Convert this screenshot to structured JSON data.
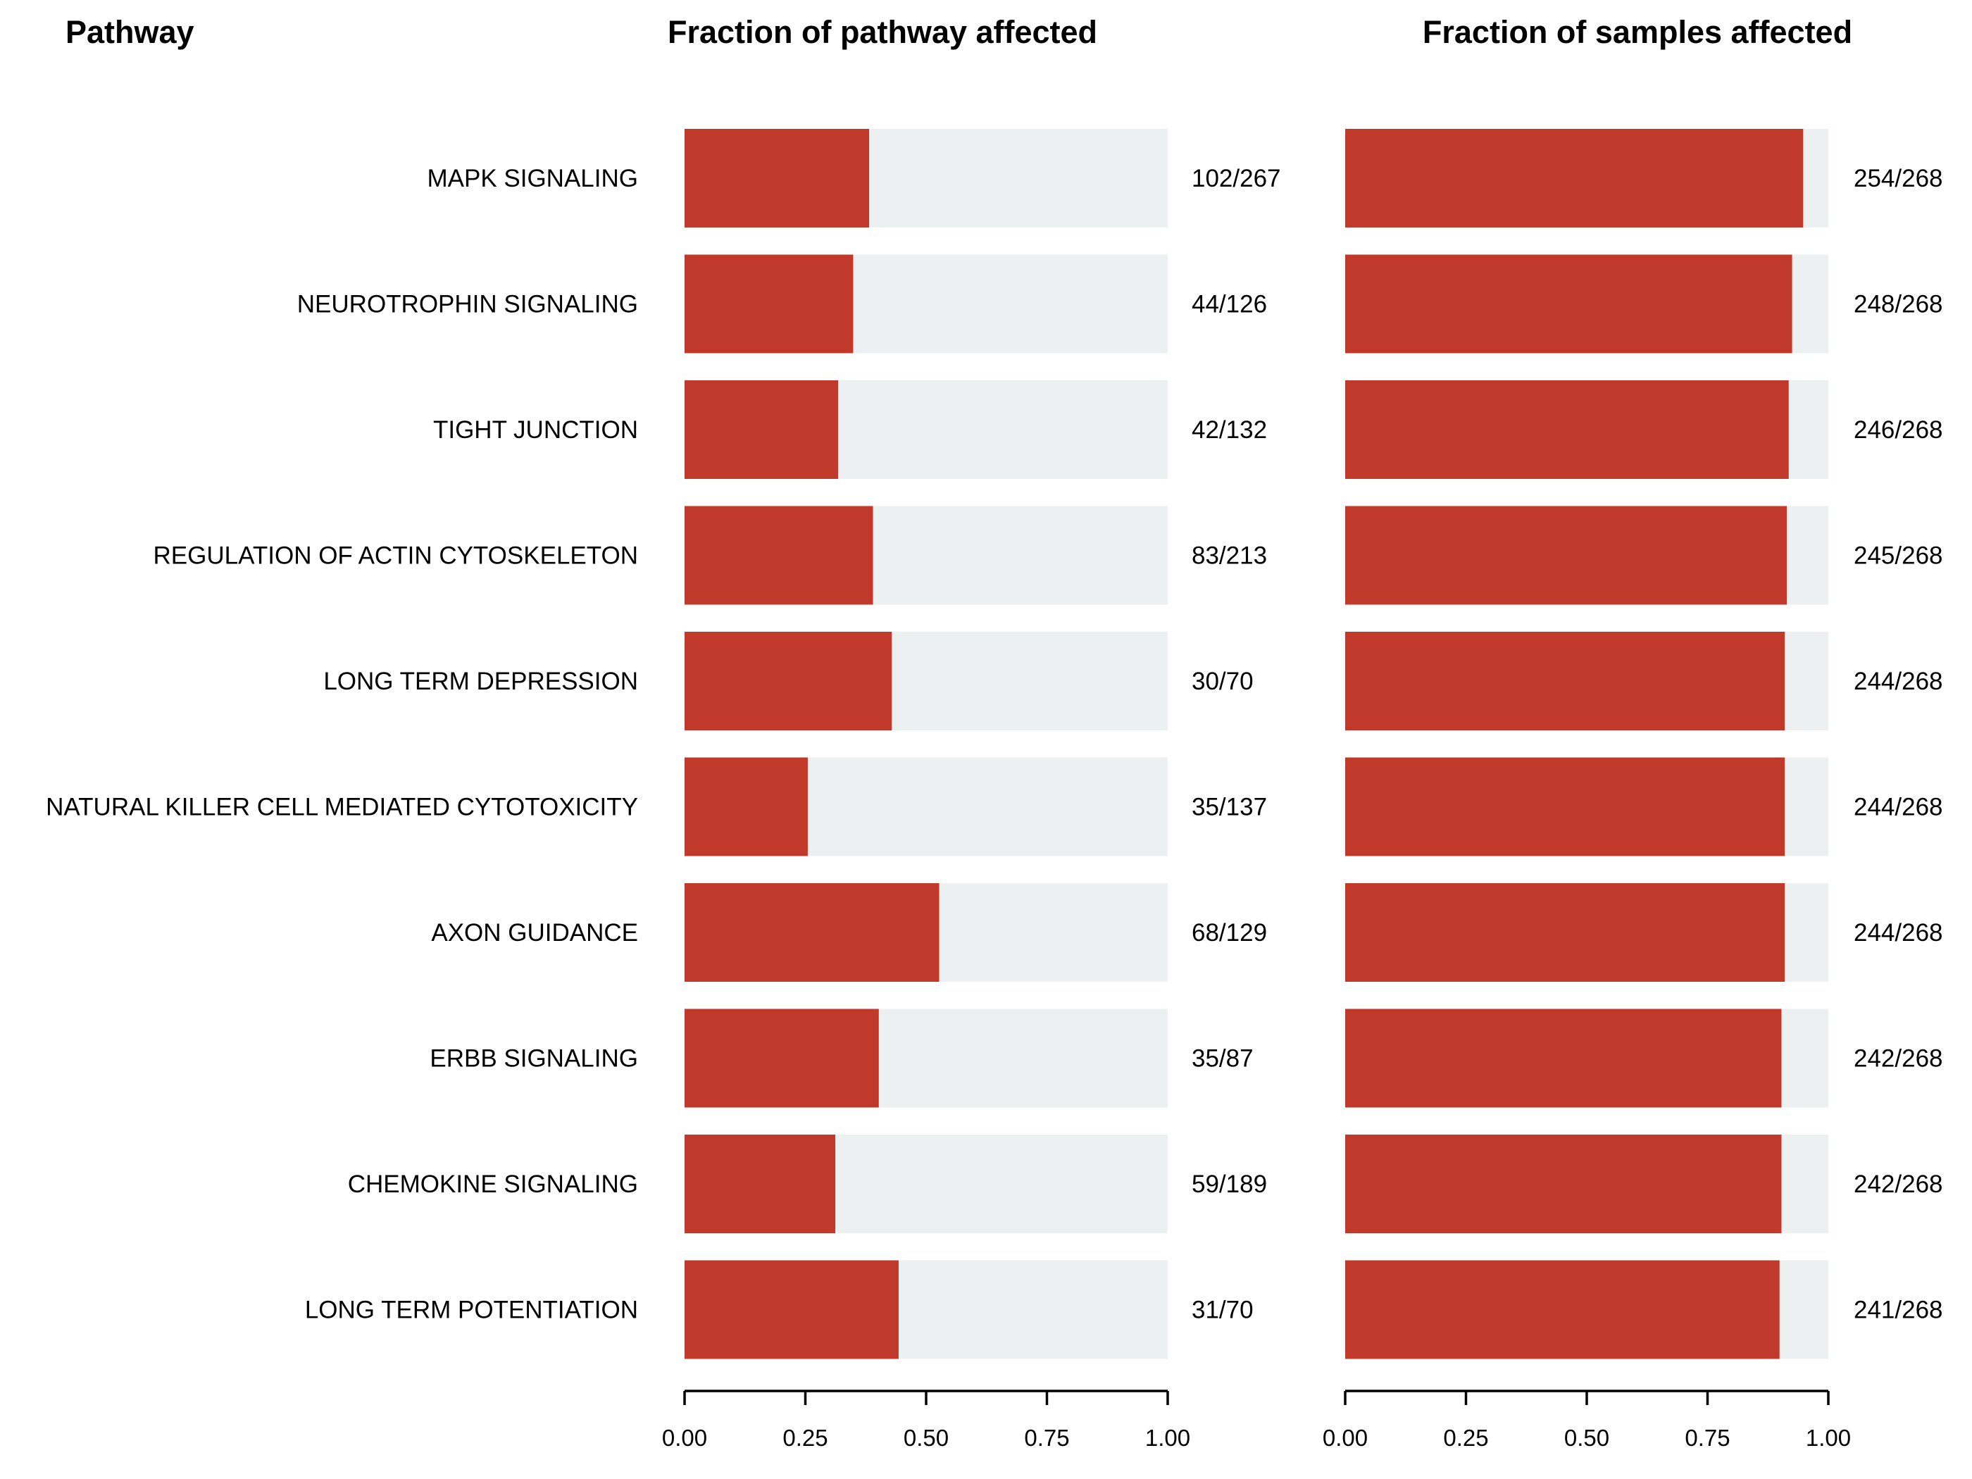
{
  "headers": {
    "pathway": "Pathway",
    "fraction_pathway": "Fraction of pathway affected",
    "fraction_samples": "Fraction of samples affected"
  },
  "colors": {
    "bar": "#c0392b",
    "background_bar": "#ecf0f1",
    "text": "#000000"
  },
  "chart_data": {
    "type": "bar",
    "orientation": "horizontal",
    "stacked_background": true,
    "categories": [
      "MAPK SIGNALING",
      "NEUROTROPHIN SIGNALING",
      "TIGHT JUNCTION",
      "REGULATION OF ACTIN CYTOSKELETON",
      "LONG TERM DEPRESSION",
      "NATURAL KILLER CELL MEDIATED CYTOTOXICITY",
      "AXON GUIDANCE",
      "ERBB SIGNALING",
      "CHEMOKINE SIGNALING",
      "LONG TERM POTENTIATION"
    ],
    "panels": [
      {
        "title": "Fraction of pathway affected",
        "xlim": [
          0,
          1
        ],
        "ticks": [
          "0.00",
          "0.25",
          "0.50",
          "0.75",
          "1.00"
        ],
        "values": [
          0.382,
          0.349,
          0.318,
          0.39,
          0.429,
          0.255,
          0.527,
          0.402,
          0.312,
          0.443
        ],
        "labels": [
          "102/267",
          "44/126",
          "42/132",
          "83/213",
          "30/70",
          "35/137",
          "68/129",
          "35/87",
          "59/189",
          "31/70"
        ]
      },
      {
        "title": "Fraction of samples affected",
        "xlim": [
          0,
          1
        ],
        "ticks": [
          "0.00",
          "0.25",
          "0.50",
          "0.75",
          "1.00"
        ],
        "values": [
          0.948,
          0.925,
          0.918,
          0.914,
          0.91,
          0.91,
          0.91,
          0.903,
          0.903,
          0.899
        ],
        "labels": [
          "254/268",
          "248/268",
          "246/268",
          "245/268",
          "244/268",
          "244/268",
          "244/268",
          "242/268",
          "242/268",
          "241/268"
        ]
      }
    ],
    "grid": false,
    "legend": "none"
  }
}
